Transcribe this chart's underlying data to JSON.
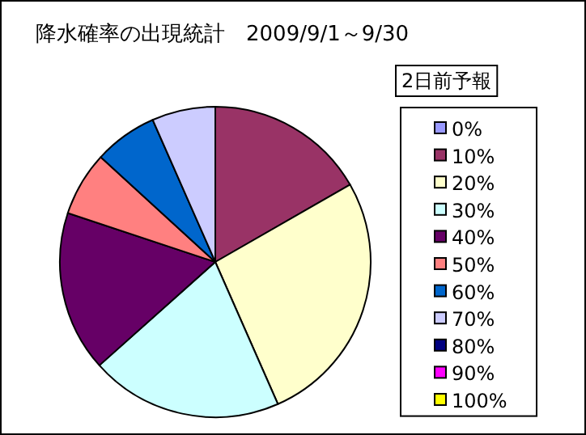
{
  "chart_data": {
    "type": "pie",
    "title": "降水確率の出現統計　2009/9/1～9/30",
    "legend_title": "2日前予報",
    "categories": [
      "0%",
      "10%",
      "20%",
      "30%",
      "40%",
      "50%",
      "60%",
      "70%",
      "80%",
      "90%",
      "100%"
    ],
    "values": [
      0,
      16.7,
      26.7,
      20,
      16.7,
      6.7,
      6.6,
      6.6,
      0,
      0,
      0
    ],
    "colors": [
      "#9999ff",
      "#993366",
      "#ffffcc",
      "#ccffff",
      "#660066",
      "#ff8080",
      "#0066cc",
      "#ccccff",
      "#000080",
      "#ff00ff",
      "#ffff00"
    ],
    "legend": "right"
  }
}
